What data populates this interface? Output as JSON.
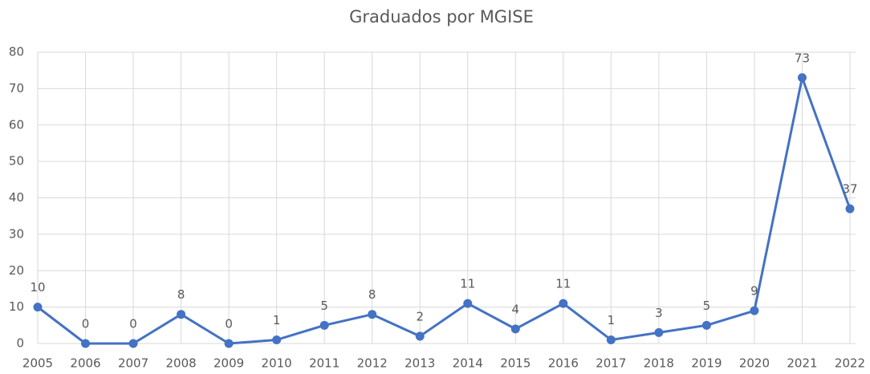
{
  "chart_data": {
    "type": "line",
    "title": "Graduados por MGISE",
    "categories": [
      "2005",
      "2006",
      "2007",
      "2008",
      "2009",
      "2010",
      "2011",
      "2012",
      "2013",
      "2014",
      "2015",
      "2016",
      "2017",
      "2018",
      "2019",
      "2020",
      "2021",
      "2022"
    ],
    "series": [
      {
        "name": "Graduados",
        "color": "#4472c4",
        "values": [
          10,
          0,
          0,
          8,
          0,
          1,
          5,
          8,
          2,
          11,
          4,
          11,
          1,
          3,
          5,
          9,
          73,
          37
        ]
      }
    ],
    "ylim": [
      0,
      80
    ],
    "yticks": [
      0,
      10,
      20,
      30,
      40,
      50,
      60,
      70,
      80
    ],
    "grid": true,
    "legend": false
  }
}
